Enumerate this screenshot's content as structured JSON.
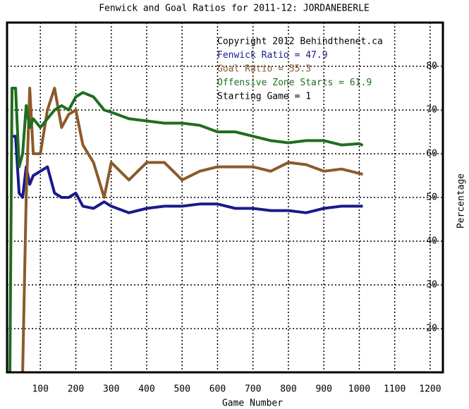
{
  "chart_data": {
    "type": "line",
    "title": "Fenwick and Goal Ratios for 2011-12: JORDANEBERLE",
    "x_label": "Game Number",
    "y_label": "Percentage",
    "annotations": [
      {
        "text": "Copyright 2012 Behindthenet.ca",
        "color": "#000000"
      },
      {
        "text": "Fenwick Ratio = 47.9",
        "color": "#1a1a8c"
      },
      {
        "text": "Goal Ratio = 55.3",
        "color": "#8c5a2b"
      },
      {
        "text": "Offensive Zone Starts = 61.9",
        "color": "#1e6e1e"
      },
      {
        "text": "Starting Game = 1",
        "color": "#000000"
      }
    ],
    "x": [
      14,
      20,
      30,
      40,
      50,
      60,
      70,
      80,
      100,
      120,
      140,
      160,
      180,
      200,
      220,
      250,
      280,
      300,
      350,
      400,
      450,
      500,
      550,
      600,
      650,
      700,
      750,
      800,
      850,
      900,
      950,
      1000,
      1010
    ],
    "series": [
      {
        "color": "#1a1a8c",
        "values": [
          null,
          64,
          64,
          51,
          50,
          57,
          53,
          55,
          56,
          57,
          51,
          50,
          50,
          51,
          48,
          47.5,
          49,
          48,
          46.5,
          47.5,
          48,
          48,
          48.5,
          48.5,
          47.5,
          47.5,
          47,
          47,
          46.5,
          47.5,
          48,
          48,
          48
        ]
      },
      {
        "color": "#8c5a2b",
        "values": [
          null,
          null,
          null,
          null,
          10,
          50,
          75,
          60,
          60,
          70,
          75,
          66,
          69,
          70,
          62,
          58,
          50,
          58,
          54,
          58,
          58,
          54,
          56,
          57,
          57,
          57,
          56,
          58,
          57.5,
          56,
          56.5,
          55.5,
          55.3
        ]
      },
      {
        "color": "#1e6e1e",
        "values": [
          10,
          75,
          75,
          57,
          60,
          71,
          66,
          68,
          66,
          68,
          70,
          71,
          70,
          73,
          74,
          73,
          70,
          69.5,
          68,
          67.5,
          67,
          67,
          66.5,
          65,
          65,
          64,
          63,
          62.5,
          63,
          63,
          62,
          62.3,
          61.9
        ]
      }
    ],
    "xlim": [
      6,
      1236
    ],
    "ylim": [
      10,
      90
    ],
    "xticks": [
      100,
      200,
      300,
      400,
      500,
      600,
      700,
      800,
      900,
      1000,
      1100,
      1200
    ],
    "yticks": [
      20,
      30,
      40,
      50,
      60,
      70,
      80
    ],
    "grid": true
  }
}
